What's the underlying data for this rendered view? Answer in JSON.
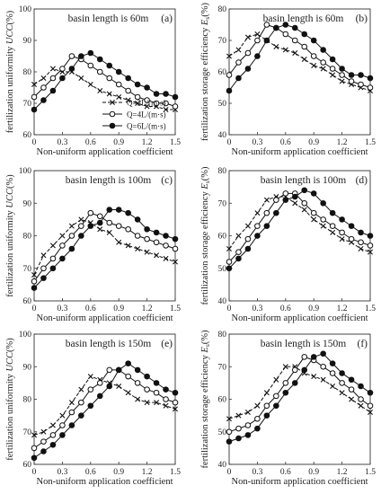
{
  "x_label": "Non-uniform application coefficient",
  "y_label_left_prefix": "fertilization uniformity ",
  "y_label_left_symbol": "UCC",
  "y_label_left_suffix": "(%)",
  "y_label_right_prefix": "fertilization storage efficiency ",
  "y_label_right_symbol": "E",
  "y_label_right_subscript": "s",
  "y_label_right_suffix": "(%)",
  "legend_labels": [
    "Q=2L/(m·s)",
    "Q=4L/(m·s)",
    "Q=6L/(m·s)"
  ],
  "chart_data": [
    {
      "panel": "(a)",
      "type": "line",
      "title": "basin length is 60m",
      "x": [
        0,
        0.1,
        0.2,
        0.3,
        0.4,
        0.5,
        0.6,
        0.7,
        0.8,
        0.9,
        1.0,
        1.1,
        1.2,
        1.3,
        1.4,
        1.5
      ],
      "xticks": [
        "0",
        "0.3",
        "0.6",
        "0.9",
        "1.2",
        "1.5"
      ],
      "yticks": [
        "60",
        "70",
        "80",
        "90",
        "100"
      ],
      "xlim": [
        0,
        1.5
      ],
      "ylim": [
        60,
        100
      ],
      "series": [
        {
          "name": "Q=2L/(m·s)",
          "marker": "x",
          "values": [
            76,
            78,
            81,
            80,
            80,
            78,
            76,
            74,
            73,
            72,
            71,
            70,
            69,
            69,
            68,
            68
          ]
        },
        {
          "name": "Q=4L/(m·s)",
          "marker": "open",
          "values": [
            72,
            75,
            78,
            81,
            85,
            84,
            82,
            80,
            78,
            76,
            74,
            72,
            71,
            70,
            70,
            69
          ]
        },
        {
          "name": "Q=6L/(m·s)",
          "marker": "filled",
          "values": [
            68,
            71,
            74,
            78,
            81,
            85,
            86,
            84,
            82,
            80,
            78,
            76,
            75,
            73,
            73,
            72
          ]
        }
      ]
    },
    {
      "panel": "(b)",
      "type": "line",
      "title": "basin length is 60m",
      "x": [
        0,
        0.1,
        0.2,
        0.3,
        0.4,
        0.5,
        0.6,
        0.7,
        0.8,
        0.9,
        1.0,
        1.1,
        1.2,
        1.3,
        1.4,
        1.5
      ],
      "xticks": [
        "0",
        "0.3",
        "0.6",
        "0.9",
        "1.2",
        "1.5"
      ],
      "yticks": [
        "40",
        "50",
        "60",
        "70",
        "80"
      ],
      "xlim": [
        0,
        1.5
      ],
      "ylim": [
        40,
        80
      ],
      "series": [
        {
          "name": "Q=2L/(m·s)",
          "marker": "x",
          "values": [
            65,
            67,
            71,
            72,
            70,
            68,
            67,
            66,
            64,
            62,
            61,
            59,
            57,
            56,
            55,
            54
          ]
        },
        {
          "name": "Q=4L/(m·s)",
          "marker": "open",
          "values": [
            59,
            63,
            66,
            70,
            75,
            74,
            72,
            70,
            68,
            65,
            63,
            61,
            59,
            57,
            56,
            55
          ]
        },
        {
          "name": "Q=6L/(m·s)",
          "marker": "filled",
          "values": [
            54,
            58,
            61,
            65,
            70,
            74,
            75,
            74,
            72,
            70,
            67,
            64,
            61,
            59,
            59,
            58
          ]
        }
      ]
    },
    {
      "panel": "(c)",
      "type": "line",
      "title": "basin length is 100m",
      "x": [
        0,
        0.1,
        0.2,
        0.3,
        0.4,
        0.5,
        0.6,
        0.7,
        0.8,
        0.9,
        1.0,
        1.1,
        1.2,
        1.3,
        1.4,
        1.5
      ],
      "xticks": [
        "0",
        "0.3",
        "0.6",
        "0.9",
        "1.2",
        "1.5"
      ],
      "yticks": [
        "60",
        "70",
        "80",
        "90",
        "100"
      ],
      "xlim": [
        0,
        1.5
      ],
      "ylim": [
        60,
        100
      ],
      "series": [
        {
          "name": "Q=2L/(m·s)",
          "marker": "x",
          "values": [
            68,
            74,
            77,
            80,
            83,
            85,
            84,
            82,
            81,
            78,
            77,
            76,
            75,
            74,
            73,
            72
          ]
        },
        {
          "name": "Q=4L/(m·s)",
          "marker": "open",
          "values": [
            66,
            70,
            73,
            77,
            80,
            83,
            87,
            86,
            84,
            83,
            82,
            80,
            79,
            78,
            77,
            76
          ]
        },
        {
          "name": "Q=6L/(m·s)",
          "marker": "filled",
          "values": [
            64,
            67,
            70,
            73,
            76,
            80,
            83,
            84,
            88,
            88,
            87,
            85,
            82,
            81,
            80,
            79
          ]
        }
      ]
    },
    {
      "panel": "(d)",
      "type": "line",
      "title": "basin length is 100m",
      "x": [
        0,
        0.1,
        0.2,
        0.3,
        0.4,
        0.5,
        0.6,
        0.7,
        0.8,
        0.9,
        1.0,
        1.1,
        1.2,
        1.3,
        1.4,
        1.5
      ],
      "xticks": [
        "0",
        "0.3",
        "0.6",
        "0.9",
        "1.2",
        "1.5"
      ],
      "yticks": [
        "40",
        "50",
        "60",
        "70",
        "80"
      ],
      "xlim": [
        0,
        1.5
      ],
      "ylim": [
        40,
        80
      ],
      "series": [
        {
          "name": "Q=2L/(m·s)",
          "marker": "x",
          "values": [
            56,
            60,
            63,
            67,
            71,
            72,
            72,
            70,
            68,
            65,
            63,
            61,
            59,
            58,
            56,
            55
          ]
        },
        {
          "name": "Q=4L/(m·s)",
          "marker": "open",
          "values": [
            52,
            55,
            59,
            63,
            67,
            71,
            73,
            73,
            70,
            67,
            65,
            63,
            61,
            59,
            58,
            57
          ]
        },
        {
          "name": "Q=6L/(m·s)",
          "marker": "filled",
          "values": [
            50,
            53,
            56,
            60,
            63,
            67,
            71,
            72,
            74,
            73,
            70,
            67,
            65,
            63,
            61,
            60
          ]
        }
      ]
    },
    {
      "panel": "(e)",
      "type": "line",
      "title": "basin length is 150m",
      "x": [
        0,
        0.1,
        0.2,
        0.3,
        0.4,
        0.5,
        0.6,
        0.7,
        0.8,
        0.9,
        1.0,
        1.1,
        1.2,
        1.3,
        1.4,
        1.5
      ],
      "xticks": [
        "0",
        "0.3",
        "0.6",
        "0.9",
        "1.2",
        "1.5"
      ],
      "yticks": [
        "60",
        "70",
        "80",
        "90",
        "100"
      ],
      "xlim": [
        0,
        1.5
      ],
      "ylim": [
        60,
        100
      ],
      "series": [
        {
          "name": "Q=2L/(m·s)",
          "marker": "x",
          "values": [
            69,
            70,
            72,
            75,
            79,
            83,
            87,
            86,
            85,
            84,
            82,
            80,
            79,
            79,
            78,
            77
          ]
        },
        {
          "name": "Q=4L/(m·s)",
          "marker": "open",
          "values": [
            65,
            67,
            69,
            72,
            76,
            79,
            83,
            85,
            89,
            89,
            87,
            85,
            83,
            82,
            80,
            79
          ]
        },
        {
          "name": "Q=6L/(m·s)",
          "marker": "filled",
          "values": [
            62,
            64,
            66,
            69,
            72,
            75,
            78,
            81,
            84,
            89,
            91,
            89,
            87,
            85,
            83,
            82
          ]
        }
      ]
    },
    {
      "panel": "(f)",
      "type": "line",
      "title": "basin length is 150m",
      "x": [
        0,
        0.1,
        0.2,
        0.3,
        0.4,
        0.5,
        0.6,
        0.7,
        0.8,
        0.9,
        1.0,
        1.1,
        1.2,
        1.3,
        1.4,
        1.5
      ],
      "xticks": [
        "0",
        "0.3",
        "0.6",
        "0.9",
        "1.2",
        "1.5"
      ],
      "yticks": [
        "40",
        "50",
        "60",
        "70",
        "80"
      ],
      "xlim": [
        0,
        1.5
      ],
      "ylim": [
        40,
        80
      ],
      "series": [
        {
          "name": "Q=2L/(m·s)",
          "marker": "x",
          "values": [
            54,
            55,
            56,
            58,
            62,
            66,
            70,
            70,
            68,
            67,
            66,
            64,
            62,
            60,
            58,
            56
          ]
        },
        {
          "name": "Q=4L/(m·s)",
          "marker": "open",
          "values": [
            50,
            51,
            52,
            54,
            58,
            61,
            65,
            69,
            73,
            72,
            70,
            68,
            65,
            63,
            60,
            58
          ]
        },
        {
          "name": "Q=6L/(m·s)",
          "marker": "filled",
          "values": [
            47,
            48,
            49,
            51,
            55,
            58,
            62,
            65,
            69,
            73,
            74,
            71,
            68,
            66,
            64,
            62
          ]
        }
      ]
    }
  ]
}
